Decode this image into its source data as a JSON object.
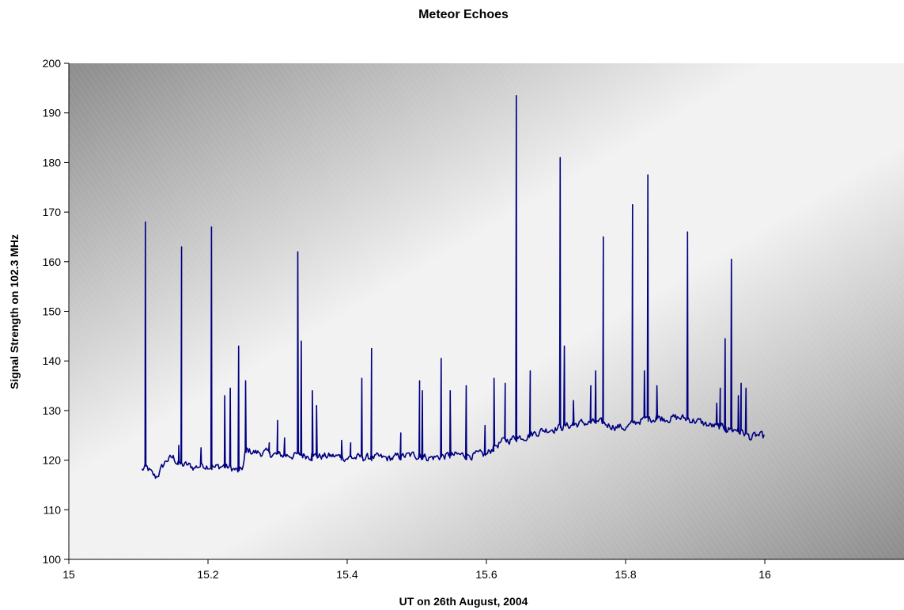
{
  "chart_data": {
    "type": "line",
    "title": "Meteor Echoes",
    "xlabel": "UT on 26th August, 2004",
    "ylabel": "Signal Strength on 102.3 MHz",
    "xlim": [
      15,
      16.2
    ],
    "ylim": [
      100,
      200
    ],
    "xticks": [
      15,
      15.2,
      15.4,
      15.6,
      15.8,
      16
    ],
    "xtick_labels": [
      "15",
      "15.2",
      "15.4",
      "15.6",
      "15.8",
      "16"
    ],
    "yticks": [
      100,
      110,
      120,
      130,
      140,
      150,
      160,
      170,
      180,
      190,
      200
    ],
    "ytick_labels": [
      "100",
      "110",
      "120",
      "130",
      "140",
      "150",
      "160",
      "170",
      "180",
      "190",
      "200"
    ],
    "grid": false,
    "legend": "none",
    "line_color": "#000080",
    "baseline": [
      [
        15.105,
        118
      ],
      [
        15.11,
        118.5
      ],
      [
        15.115,
        118
      ],
      [
        15.12,
        117
      ],
      [
        15.125,
        116.5
      ],
      [
        15.13,
        117.5
      ],
      [
        15.14,
        120
      ],
      [
        15.15,
        120.5
      ],
      [
        15.16,
        119
      ],
      [
        15.17,
        119
      ],
      [
        15.18,
        118.5
      ],
      [
        15.19,
        119
      ],
      [
        15.2,
        119
      ],
      [
        15.21,
        118.5
      ],
      [
        15.22,
        118.8
      ],
      [
        15.23,
        118.5
      ],
      [
        15.24,
        118
      ],
      [
        15.245,
        117.5
      ],
      [
        15.25,
        118.5
      ],
      [
        15.255,
        122
      ],
      [
        15.27,
        121.5
      ],
      [
        15.28,
        121.5
      ],
      [
        15.3,
        121
      ],
      [
        15.32,
        121
      ],
      [
        15.34,
        121
      ],
      [
        15.36,
        120.8
      ],
      [
        15.38,
        120.8
      ],
      [
        15.4,
        120.5
      ],
      [
        15.42,
        120.5
      ],
      [
        15.44,
        120.5
      ],
      [
        15.46,
        120.3
      ],
      [
        15.48,
        120.8
      ],
      [
        15.5,
        121
      ],
      [
        15.52,
        120.5
      ],
      [
        15.54,
        120.8
      ],
      [
        15.56,
        121
      ],
      [
        15.58,
        121
      ],
      [
        15.6,
        121
      ],
      [
        15.61,
        122.5
      ],
      [
        15.62,
        123.5
      ],
      [
        15.64,
        124.5
      ],
      [
        15.66,
        125
      ],
      [
        15.68,
        126
      ],
      [
        15.7,
        126.5
      ],
      [
        15.72,
        127
      ],
      [
        15.74,
        127.5
      ],
      [
        15.76,
        127.5
      ],
      [
        15.78,
        127
      ],
      [
        15.8,
        126.5
      ],
      [
        15.82,
        128
      ],
      [
        15.84,
        128.5
      ],
      [
        15.86,
        128.5
      ],
      [
        15.88,
        128.5
      ],
      [
        15.9,
        128
      ],
      [
        15.92,
        127
      ],
      [
        15.94,
        126.5
      ],
      [
        15.96,
        126
      ],
      [
        15.97,
        125.5
      ],
      [
        15.98,
        124.5
      ],
      [
        15.99,
        125
      ],
      [
        16.0,
        124.5
      ]
    ],
    "spikes": [
      [
        15.11,
        168
      ],
      [
        15.158,
        123
      ],
      [
        15.162,
        163
      ],
      [
        15.19,
        122.5
      ],
      [
        15.205,
        167
      ],
      [
        15.224,
        133
      ],
      [
        15.232,
        134.5
      ],
      [
        15.244,
        143
      ],
      [
        15.254,
        136
      ],
      [
        15.288,
        123.5
      ],
      [
        15.3,
        128
      ],
      [
        15.31,
        124.5
      ],
      [
        15.329,
        162
      ],
      [
        15.334,
        144
      ],
      [
        15.35,
        134
      ],
      [
        15.356,
        131
      ],
      [
        15.392,
        124
      ],
      [
        15.405,
        123.5
      ],
      [
        15.421,
        136.5
      ],
      [
        15.435,
        142.5
      ],
      [
        15.477,
        125.5
      ],
      [
        15.504,
        136
      ],
      [
        15.508,
        134
      ],
      [
        15.535,
        140.5
      ],
      [
        15.548,
        134
      ],
      [
        15.571,
        135
      ],
      [
        15.598,
        127
      ],
      [
        15.611,
        136.5
      ],
      [
        15.627,
        135.5
      ],
      [
        15.643,
        193.5
      ],
      [
        15.663,
        138
      ],
      [
        15.706,
        181
      ],
      [
        15.712,
        143
      ],
      [
        15.725,
        132
      ],
      [
        15.75,
        135
      ],
      [
        15.757,
        138
      ],
      [
        15.768,
        165
      ],
      [
        15.81,
        171.5
      ],
      [
        15.827,
        138
      ],
      [
        15.832,
        177.5
      ],
      [
        15.845,
        135
      ],
      [
        15.889,
        166
      ],
      [
        15.931,
        131.5
      ],
      [
        15.936,
        134.5
      ],
      [
        15.943,
        144.5
      ],
      [
        15.952,
        160.5
      ],
      [
        15.962,
        133
      ],
      [
        15.966,
        135.5
      ],
      [
        15.973,
        134.5
      ]
    ]
  }
}
